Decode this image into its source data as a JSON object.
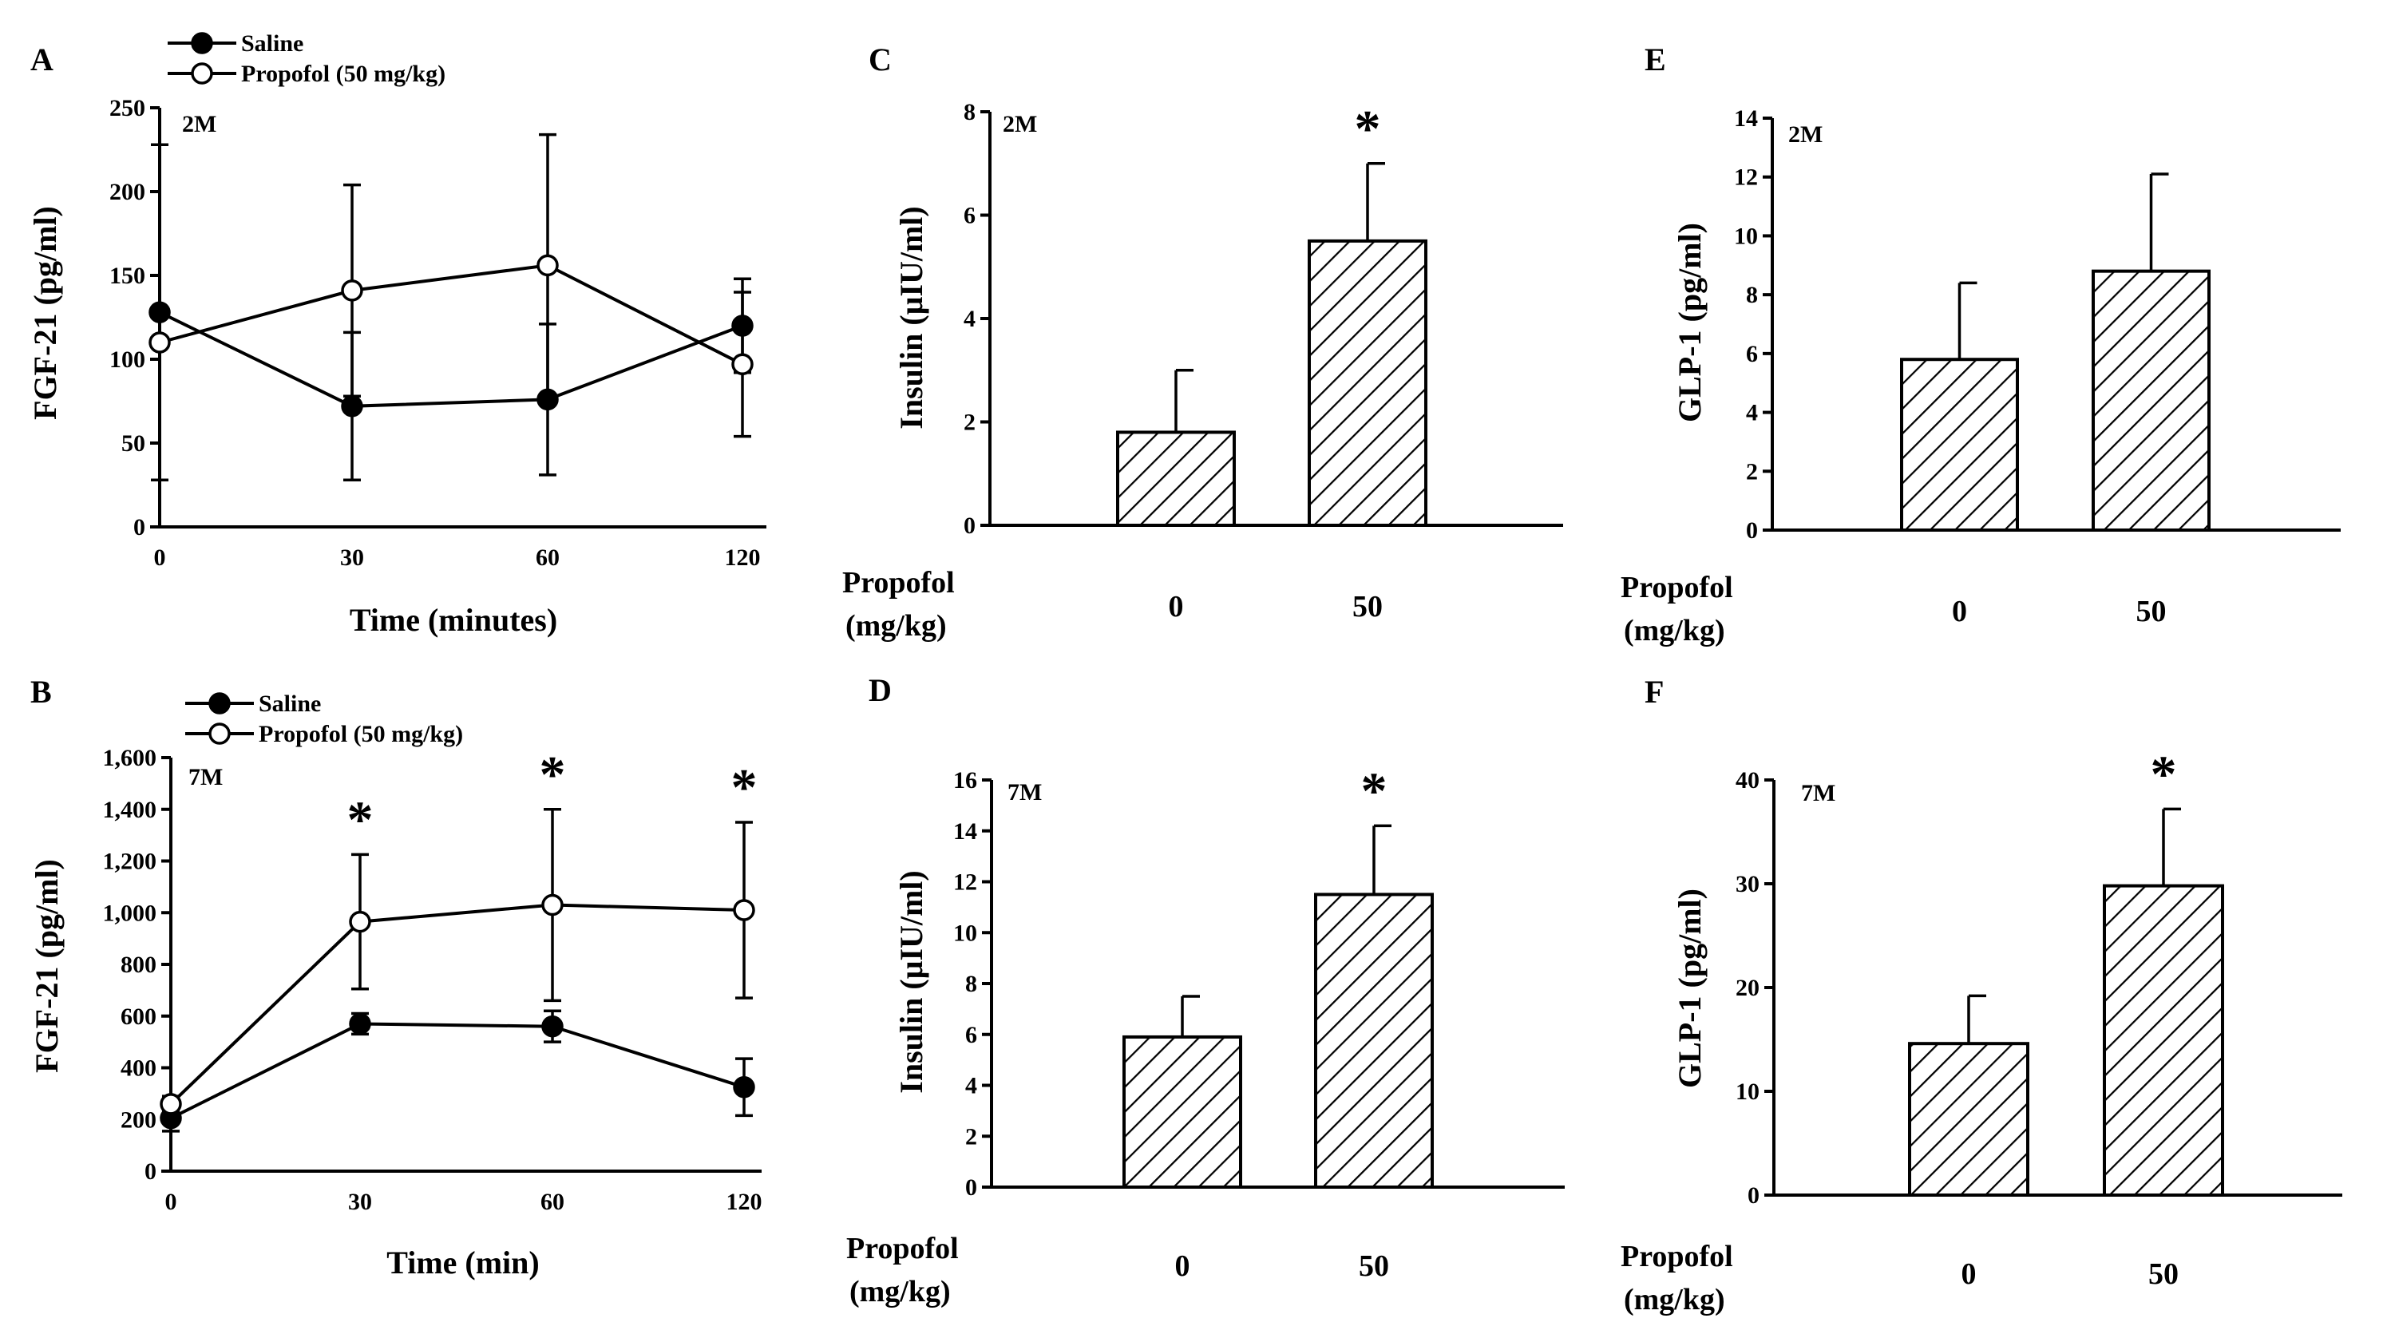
{
  "colors": {
    "ink": "#000000",
    "paper": "#ffffff"
  },
  "chart_data": [
    {
      "id": "A",
      "panel": "A",
      "type": "line",
      "age": "2M",
      "xlabel": "Time (minutes)",
      "ylabel": "FGF-21 (pg/ml)",
      "x": [
        0,
        30,
        60,
        120
      ],
      "x_ticks": [
        "0",
        "30",
        "60",
        "120"
      ],
      "ylim": [
        0,
        250
      ],
      "y_ticks": [
        0,
        50,
        100,
        150,
        200,
        250
      ],
      "y_tick_labels": [
        "0",
        "50",
        "100",
        "150",
        "200",
        "250"
      ],
      "series": [
        {
          "name": "Saline",
          "marker": "filled",
          "values": [
            128,
            72,
            76,
            120
          ],
          "error": [
            100,
            44,
            45,
            28
          ]
        },
        {
          "name": "Propofol (50 mg/kg)",
          "marker": "open",
          "values": [
            110,
            141,
            156,
            97
          ],
          "error": [
            0,
            63,
            78,
            43
          ]
        }
      ],
      "significance": []
    },
    {
      "id": "B",
      "panel": "B",
      "type": "line",
      "age": "7M",
      "xlabel": "Time (min)",
      "ylabel": "FGF-21 (pg/ml)",
      "x": [
        0,
        30,
        60,
        120
      ],
      "x_ticks": [
        "0",
        "30",
        "60",
        "120"
      ],
      "ylim": [
        0,
        1600
      ],
      "y_ticks": [
        0,
        200,
        400,
        600,
        800,
        1000,
        1200,
        1400,
        1600
      ],
      "y_tick_labels": [
        "0",
        "200",
        "400",
        "600",
        "800",
        "1,000",
        "1,200",
        "1,400",
        "1,600"
      ],
      "series": [
        {
          "name": "Saline",
          "marker": "filled",
          "values": [
            205,
            570,
            560,
            325
          ],
          "error": [
            50,
            40,
            60,
            110
          ]
        },
        {
          "name": "Propofol (50 mg/kg)",
          "marker": "open",
          "values": [
            260,
            965,
            1030,
            1010
          ],
          "error": [
            30,
            260,
            370,
            340
          ]
        }
      ],
      "significance": [
        {
          "x": 30,
          "label": "*"
        },
        {
          "x": 60,
          "label": "*"
        },
        {
          "x": 120,
          "label": "*"
        }
      ]
    },
    {
      "id": "C",
      "panel": "C",
      "type": "bar",
      "age": "2M",
      "ylabel": "Insulin (μIU/ml)",
      "x_title_line1": "Propofol",
      "x_title_line2": "(mg/kg)",
      "categories": [
        "0",
        "50"
      ],
      "values": [
        1.8,
        5.5
      ],
      "error": [
        1.2,
        1.5
      ],
      "ylim": [
        0,
        8
      ],
      "y_ticks": [
        0,
        2,
        4,
        6,
        8
      ],
      "y_tick_labels": [
        "0",
        "2",
        "4",
        "6",
        "8"
      ],
      "significance": [
        {
          "index": 1,
          "label": "*"
        }
      ]
    },
    {
      "id": "D",
      "panel": "D",
      "type": "bar",
      "age": "7M",
      "ylabel": "Insulin (μIU/ml)",
      "x_title_line1": "Propofol",
      "x_title_line2": "(mg/kg)",
      "categories": [
        "0",
        "50"
      ],
      "values": [
        5.9,
        11.5
      ],
      "error": [
        1.6,
        2.7
      ],
      "ylim": [
        0,
        16
      ],
      "y_ticks": [
        0,
        2,
        4,
        6,
        8,
        10,
        12,
        14,
        16
      ],
      "y_tick_labels": [
        "0",
        "2",
        "4",
        "6",
        "8",
        "10",
        "12",
        "14",
        "16"
      ],
      "significance": [
        {
          "index": 1,
          "label": "*"
        }
      ]
    },
    {
      "id": "E",
      "panel": "E",
      "type": "bar",
      "age": "2M",
      "ylabel": "GLP-1 (pg/ml)",
      "x_title_line1": "Propofol",
      "x_title_line2": "(mg/kg)",
      "categories": [
        "0",
        "50"
      ],
      "values": [
        5.8,
        8.8
      ],
      "error": [
        2.6,
        3.3
      ],
      "ylim": [
        0,
        14
      ],
      "y_ticks": [
        0,
        2,
        4,
        6,
        8,
        10,
        12,
        14
      ],
      "y_tick_labels": [
        "0",
        "2",
        "4",
        "6",
        "8",
        "10",
        "12",
        "14"
      ],
      "significance": []
    },
    {
      "id": "F",
      "panel": "F",
      "type": "bar",
      "age": "7M",
      "ylabel": "GLP-1 (pg/ml)",
      "x_title_line1": "Propofol",
      "x_title_line2": "(mg/kg)",
      "categories": [
        "0",
        "50"
      ],
      "values": [
        14.6,
        29.8
      ],
      "error": [
        4.6,
        7.4
      ],
      "ylim": [
        0,
        40
      ],
      "y_ticks": [
        0,
        10,
        20,
        30,
        40
      ],
      "y_tick_labels": [
        "0",
        "10",
        "20",
        "30",
        "40"
      ],
      "significance": [
        {
          "index": 1,
          "label": "*"
        }
      ]
    }
  ]
}
